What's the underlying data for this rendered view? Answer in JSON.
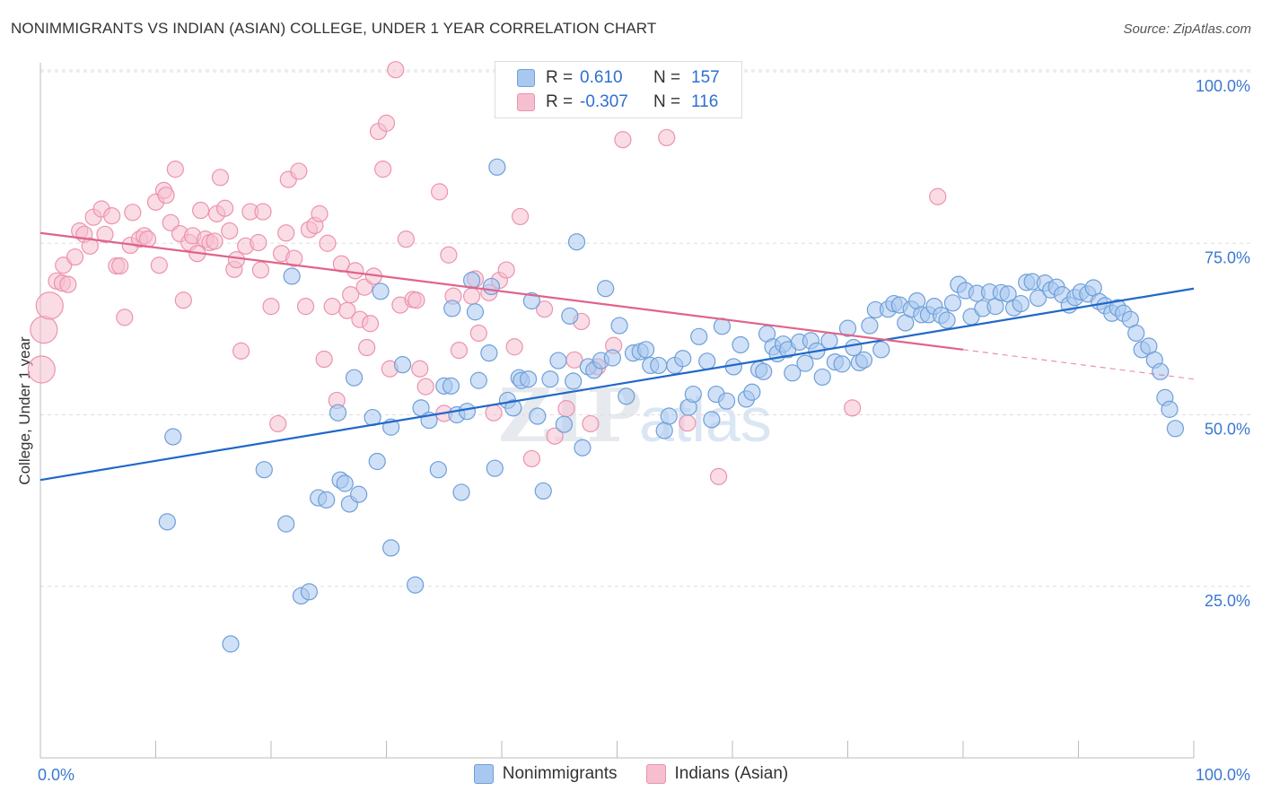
{
  "title": "NONIMMIGRANTS VS INDIAN (ASIAN) COLLEGE, UNDER 1 YEAR CORRELATION CHART",
  "source": "Source: ZipAtlas.com",
  "watermark": "ZIPatlas",
  "legend": {
    "series1": {
      "r_label": "R =",
      "r_value": "0.610",
      "n_label": "N =",
      "n_value": "157"
    },
    "series2": {
      "r_label": "R =",
      "r_value": "-0.307",
      "n_label": "N =",
      "n_value": "116"
    }
  },
  "colors": {
    "blue_fill": "#a9c8f0",
    "blue_stroke": "#6e9fd8",
    "blue_line": "#2068c8",
    "pink_fill": "#f6bfd0",
    "pink_stroke": "#ec93ae",
    "pink_line": "#e0638c",
    "axis_text": "#3a78d0",
    "grid": "#dddddd"
  },
  "chart_data": {
    "type": "scatter",
    "title": "NONIMMIGRANTS VS INDIAN (ASIAN) COLLEGE, UNDER 1 YEAR CORRELATION CHART",
    "xlabel": "",
    "ylabel": "College, Under 1 year",
    "xlim": [
      0,
      100
    ],
    "ylim": [
      0,
      105
    ],
    "x_tick_labels": [
      "0.0%",
      "100.0%"
    ],
    "y_ticks": [
      25,
      50,
      75,
      100
    ],
    "y_tick_labels": [
      "25.0%",
      "50.0%",
      "75.0%",
      "100.0%"
    ],
    "grid": true,
    "legend_position": "bottom",
    "series": [
      {
        "name": "Nonimmigrants",
        "color": "#a9c8f0",
        "trend": {
          "x": [
            0,
            100
          ],
          "y": [
            40.5,
            68.4
          ]
        },
        "points": [
          [
            11.5,
            46.8
          ],
          [
            11,
            34.4
          ],
          [
            16.5,
            16.6
          ],
          [
            19.4,
            42
          ],
          [
            21.3,
            34.1
          ],
          [
            21.8,
            70.2
          ],
          [
            22.6,
            23.6
          ],
          [
            23.3,
            24.2
          ],
          [
            24.1,
            37.9
          ],
          [
            24.8,
            37.6
          ],
          [
            26,
            40.5
          ],
          [
            26.4,
            40
          ],
          [
            26.8,
            37
          ],
          [
            27.6,
            38.4
          ],
          [
            27.2,
            55.4
          ],
          [
            25.8,
            50.3
          ],
          [
            28.8,
            49.6
          ],
          [
            29.2,
            43.2
          ],
          [
            29.5,
            68
          ],
          [
            30.4,
            48.2
          ],
          [
            30.4,
            30.6
          ],
          [
            31.4,
            57.3
          ],
          [
            32.5,
            25.2
          ],
          [
            33,
            51
          ],
          [
            33.7,
            49.2
          ],
          [
            34.5,
            42
          ],
          [
            35,
            54.2
          ],
          [
            35.6,
            54.2
          ],
          [
            35.7,
            65.5
          ],
          [
            36.1,
            50
          ],
          [
            36.5,
            38.7
          ],
          [
            37,
            50.5
          ],
          [
            37.4,
            69.6
          ],
          [
            37.7,
            65
          ],
          [
            38,
            55
          ],
          [
            38.9,
            59
          ],
          [
            39.1,
            68.7
          ],
          [
            39.4,
            42.2
          ],
          [
            39.6,
            86.1
          ],
          [
            40.5,
            52.1
          ],
          [
            41,
            51
          ],
          [
            41.5,
            55.4
          ],
          [
            41.7,
            55
          ],
          [
            42.3,
            55.2
          ],
          [
            42.6,
            66.6
          ],
          [
            43.1,
            49.8
          ],
          [
            43.6,
            38.9
          ],
          [
            44.2,
            55.2
          ],
          [
            44.9,
            57.9
          ],
          [
            45.4,
            48.6
          ],
          [
            45.9,
            64.4
          ],
          [
            46.2,
            54.9
          ],
          [
            46.5,
            75.2
          ],
          [
            47,
            45.2
          ],
          [
            47.5,
            57
          ],
          [
            48,
            56.5
          ],
          [
            48.6,
            57.9
          ],
          [
            49,
            68.4
          ],
          [
            49.6,
            58.3
          ],
          [
            50.2,
            63
          ],
          [
            50.8,
            52.7
          ],
          [
            51.4,
            59
          ],
          [
            52,
            59.2
          ],
          [
            52.5,
            59.5
          ],
          [
            52.9,
            57.2
          ],
          [
            53.6,
            57.2
          ],
          [
            54.1,
            47.7
          ],
          [
            54.5,
            49.8
          ],
          [
            55,
            57.2
          ],
          [
            55.7,
            58.2
          ],
          [
            56.2,
            51.1
          ],
          [
            56.6,
            53
          ],
          [
            57.1,
            61.4
          ],
          [
            57.8,
            57.8
          ],
          [
            58.2,
            49.3
          ],
          [
            58.6,
            53
          ],
          [
            59.1,
            62.9
          ],
          [
            59.5,
            52
          ],
          [
            60.1,
            57
          ],
          [
            60.7,
            60.2
          ],
          [
            61.2,
            52.3
          ],
          [
            61.7,
            53.3
          ],
          [
            62.3,
            56.6
          ],
          [
            62.7,
            56.3
          ],
          [
            63,
            61.8
          ],
          [
            63.5,
            59.9
          ],
          [
            63.9,
            58.9
          ],
          [
            64.4,
            60.3
          ],
          [
            64.8,
            59.5
          ],
          [
            65.2,
            56.1
          ],
          [
            65.8,
            60.6
          ],
          [
            66.3,
            57.5
          ],
          [
            66.8,
            60.8
          ],
          [
            67.3,
            59.3
          ],
          [
            67.8,
            55.5
          ],
          [
            68.4,
            60.8
          ],
          [
            68.9,
            57.7
          ],
          [
            69.5,
            57.4
          ],
          [
            70,
            62.6
          ],
          [
            70.5,
            59.8
          ],
          [
            71,
            57.6
          ],
          [
            71.4,
            58
          ],
          [
            71.9,
            63
          ],
          [
            72.4,
            65.3
          ],
          [
            72.9,
            59.5
          ],
          [
            73.5,
            65.4
          ],
          [
            74,
            66.2
          ],
          [
            74.5,
            66
          ],
          [
            75,
            63.4
          ],
          [
            75.5,
            65.4
          ],
          [
            76,
            66.6
          ],
          [
            76.4,
            64.6
          ],
          [
            77,
            64.6
          ],
          [
            77.5,
            65.8
          ],
          [
            78.1,
            64.5
          ],
          [
            78.6,
            63.8
          ],
          [
            79.1,
            66.3
          ],
          [
            79.6,
            69
          ],
          [
            80.2,
            68.1
          ],
          [
            80.7,
            64.3
          ],
          [
            81.2,
            67.7
          ],
          [
            81.7,
            65.5
          ],
          [
            82.3,
            67.9
          ],
          [
            82.8,
            65.8
          ],
          [
            83.3,
            67.8
          ],
          [
            83.9,
            67.6
          ],
          [
            84.4,
            65.6
          ],
          [
            85,
            66.2
          ],
          [
            85.5,
            69.3
          ],
          [
            86,
            69.4
          ],
          [
            86.5,
            67
          ],
          [
            87.1,
            69.2
          ],
          [
            87.6,
            68.2
          ],
          [
            88.1,
            68.6
          ],
          [
            88.6,
            67.5
          ],
          [
            89.2,
            66
          ],
          [
            89.7,
            67.1
          ],
          [
            90.2,
            67.9
          ],
          [
            90.8,
            67.6
          ],
          [
            91.3,
            68.5
          ],
          [
            91.8,
            66.5
          ],
          [
            92.3,
            65.9
          ],
          [
            92.9,
            64.8
          ],
          [
            93.4,
            65.6
          ],
          [
            93.9,
            64.8
          ],
          [
            94.5,
            63.9
          ],
          [
            95,
            61.9
          ],
          [
            95.5,
            59.5
          ],
          [
            96.1,
            60
          ],
          [
            96.6,
            58
          ],
          [
            97.1,
            56.3
          ],
          [
            97.5,
            52.5
          ],
          [
            97.9,
            50.8
          ],
          [
            98.4,
            48
          ]
        ]
      },
      {
        "name": "Indians (Asian)",
        "color": "#f6bfd0",
        "trend": {
          "x": [
            0,
            80
          ],
          "y": [
            76.5,
            59.5
          ]
        },
        "trend_dashed": {
          "x": [
            80,
            100
          ],
          "y": [
            59.5,
            55.2
          ]
        },
        "points": [
          [
            0.1,
            56.6
          ],
          [
            0.3,
            62.4
          ],
          [
            0.8,
            65.9
          ],
          [
            1.4,
            69.5
          ],
          [
            1.9,
            69.2
          ],
          [
            2,
            71.8
          ],
          [
            2.4,
            69
          ],
          [
            3,
            73
          ],
          [
            3.4,
            76.8
          ],
          [
            3.8,
            76.3
          ],
          [
            4.3,
            74.6
          ],
          [
            4.6,
            78.8
          ],
          [
            5.3,
            80
          ],
          [
            5.6,
            76.3
          ],
          [
            6.2,
            79
          ],
          [
            6.6,
            71.7
          ],
          [
            6.9,
            71.7
          ],
          [
            7.3,
            64.2
          ],
          [
            7.8,
            74.7
          ],
          [
            8,
            79.5
          ],
          [
            8.6,
            75.6
          ],
          [
            9,
            76.1
          ],
          [
            9.3,
            75.6
          ],
          [
            10,
            81
          ],
          [
            10.3,
            71.8
          ],
          [
            10.7,
            82.7
          ],
          [
            10.9,
            82
          ],
          [
            11.3,
            78
          ],
          [
            11.7,
            85.8
          ],
          [
            12.1,
            76.4
          ],
          [
            12.4,
            66.7
          ],
          [
            12.9,
            75.1
          ],
          [
            13.2,
            76.1
          ],
          [
            13.6,
            73.5
          ],
          [
            13.9,
            79.8
          ],
          [
            14.3,
            75.6
          ],
          [
            14.7,
            75.1
          ],
          [
            15.1,
            75.3
          ],
          [
            15.3,
            79.3
          ],
          [
            15.6,
            84.6
          ],
          [
            16,
            80.1
          ],
          [
            16.4,
            76.8
          ],
          [
            16.8,
            71.2
          ],
          [
            17,
            72.6
          ],
          [
            17.4,
            59.3
          ],
          [
            17.8,
            74.6
          ],
          [
            18.2,
            79.6
          ],
          [
            18.9,
            75.1
          ],
          [
            19.1,
            71.1
          ],
          [
            19.3,
            79.6
          ],
          [
            20,
            65.8
          ],
          [
            20.6,
            48.7
          ],
          [
            20.9,
            73.5
          ],
          [
            21.3,
            76.5
          ],
          [
            21.5,
            84.3
          ],
          [
            22,
            72.8
          ],
          [
            22.4,
            85.5
          ],
          [
            23,
            65.8
          ],
          [
            23.3,
            77
          ],
          [
            23.8,
            77.6
          ],
          [
            24.2,
            79.3
          ],
          [
            24.6,
            58.1
          ],
          [
            24.9,
            75
          ],
          [
            25.3,
            65.8
          ],
          [
            25.7,
            52.1
          ],
          [
            26.1,
            72
          ],
          [
            26.6,
            65.2
          ],
          [
            26.9,
            67.5
          ],
          [
            27.3,
            71
          ],
          [
            27.7,
            63.9
          ],
          [
            28.1,
            68.6
          ],
          [
            28.3,
            59.8
          ],
          [
            28.6,
            63.3
          ],
          [
            28.9,
            70.2
          ],
          [
            29.3,
            91.3
          ],
          [
            29.7,
            85.8
          ],
          [
            30,
            92.5
          ],
          [
            30.3,
            56.7
          ],
          [
            30.8,
            100.3
          ],
          [
            31.2,
            66
          ],
          [
            31.7,
            75.6
          ],
          [
            32.3,
            66.8
          ],
          [
            32.6,
            66.7
          ],
          [
            32.9,
            56.7
          ],
          [
            33.4,
            54.1
          ],
          [
            34.6,
            82.5
          ],
          [
            35,
            50.2
          ],
          [
            35.4,
            73.3
          ],
          [
            35.8,
            67.3
          ],
          [
            36.3,
            59.4
          ],
          [
            37.4,
            67.3
          ],
          [
            37.7,
            69.8
          ],
          [
            38,
            61.9
          ],
          [
            38.9,
            67.8
          ],
          [
            39.3,
            50.3
          ],
          [
            39.8,
            69.6
          ],
          [
            40.4,
            71.1
          ],
          [
            41.1,
            59.9
          ],
          [
            41.6,
            78.9
          ],
          [
            42.6,
            43.6
          ],
          [
            43.7,
            65.4
          ],
          [
            44.6,
            46.9
          ],
          [
            45.6,
            50.9
          ],
          [
            46.3,
            58
          ],
          [
            46.9,
            63.6
          ],
          [
            47.7,
            48.7
          ],
          [
            48.3,
            57
          ],
          [
            49.7,
            60.1
          ],
          [
            50.5,
            90.1
          ],
          [
            54.3,
            90.4
          ],
          [
            56.1,
            48.8
          ],
          [
            58.8,
            41
          ],
          [
            70.4,
            51
          ],
          [
            77.8,
            81.8
          ]
        ]
      }
    ]
  }
}
